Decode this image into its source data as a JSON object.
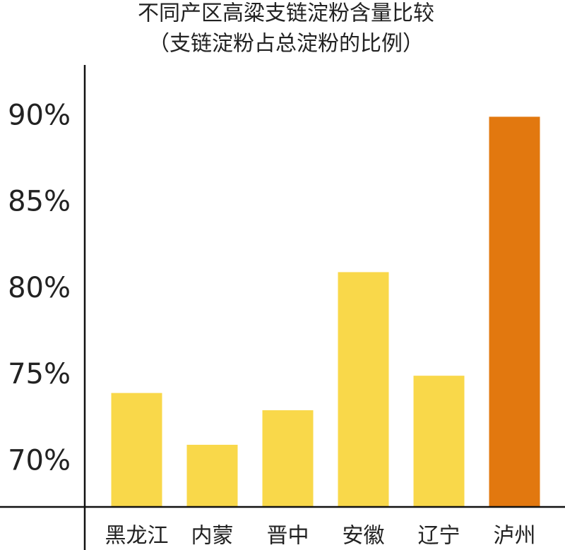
{
  "chart_data": {
    "type": "bar",
    "title": "不同产区高粱支链淀粉含量比较",
    "subtitle": "（支链淀粉占总淀粉的比例）",
    "categories": [
      "黑龙江",
      "内蒙",
      "晋中",
      "安徽",
      "辽宁",
      "泸州"
    ],
    "values": [
      74,
      71,
      73,
      81,
      75,
      90
    ],
    "colors": [
      "#f9d84a",
      "#f9d84a",
      "#f9d84a",
      "#f9d84a",
      "#f9d84a",
      "#e2780f"
    ],
    "ylim": [
      67.4,
      93
    ],
    "yticks": [
      {
        "value": 70,
        "label": "70%"
      },
      {
        "value": 75,
        "label": "75%"
      },
      {
        "value": 80,
        "label": "80%"
      },
      {
        "value": 85,
        "label": "85%"
      },
      {
        "value": 90,
        "label": "90%"
      }
    ],
    "grid": false
  }
}
